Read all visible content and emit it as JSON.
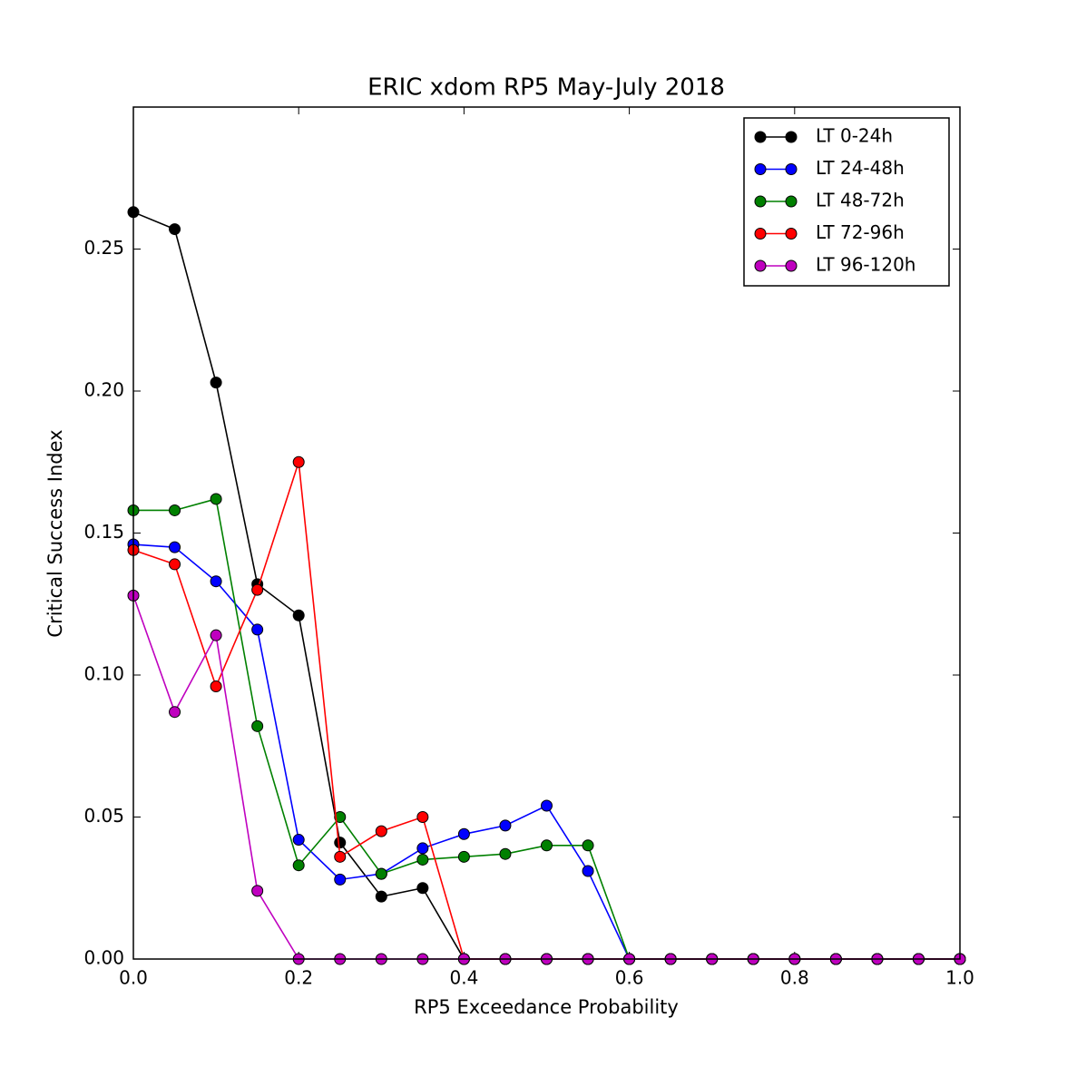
{
  "chart_data": {
    "type": "line",
    "title": "ERIC xdom RP5 May-July 2018",
    "x_label": "RP5 Exceedance Probability",
    "y_label": "Critical Success Index",
    "x": [
      0,
      0.05,
      0.1,
      0.15,
      0.2,
      0.25,
      0.3,
      0.35,
      0.4,
      0.45,
      0.5,
      0.55,
      0.6,
      0.65,
      0.7,
      0.75,
      0.8,
      0.85,
      0.9,
      0.95,
      1.0
    ],
    "series": [
      {
        "name": "LT 0-24h",
        "color": "#000000",
        "values": [
          0.263,
          0.257,
          0.203,
          0.132,
          0.121,
          0.041,
          0.022,
          0.025,
          0,
          0,
          0,
          0,
          0,
          0,
          0,
          0,
          0,
          0,
          0,
          0,
          0
        ]
      },
      {
        "name": "LT 24-48h",
        "color": "#0000ff",
        "values": [
          0.146,
          0.145,
          0.133,
          0.116,
          0.042,
          0.028,
          0.03,
          0.039,
          0.044,
          0.047,
          0.054,
          0.031,
          0,
          0,
          0,
          0,
          0,
          0,
          0,
          0,
          0
        ]
      },
      {
        "name": "LT 48-72h",
        "color": "#008000",
        "values": [
          0.158,
          0.158,
          0.162,
          0.082,
          0.033,
          0.05,
          0.03,
          0.035,
          0.036,
          0.037,
          0.04,
          0.04,
          0,
          0,
          0,
          0,
          0,
          0,
          0,
          0,
          0
        ]
      },
      {
        "name": "LT 72-96h",
        "color": "#ff0000",
        "values": [
          0.144,
          0.139,
          0.096,
          0.13,
          0.175,
          0.036,
          0.045,
          0.05,
          0,
          0,
          0,
          0,
          0,
          0,
          0,
          0,
          0,
          0,
          0,
          0,
          0
        ]
      },
      {
        "name": "LT 96-120h",
        "color": "#bf00bf",
        "values": [
          0.128,
          0.087,
          0.114,
          0.024,
          0,
          0,
          0,
          0,
          0,
          0,
          0,
          0,
          0,
          0,
          0,
          0,
          0,
          0,
          0,
          0,
          0
        ]
      }
    ],
    "xlim": [
      0,
      1.0
    ],
    "ylim": [
      0,
      0.3
    ],
    "xticks": [
      {
        "value": 0,
        "label": "0.0"
      },
      0.2,
      0.4,
      0.6,
      0.8,
      {
        "value": 1,
        "label": "1.0"
      }
    ],
    "yticks": [
      {
        "value": 0,
        "label": "0.00"
      },
      0.05,
      {
        "value": 0.1,
        "label": "0.10"
      },
      0.15,
      {
        "value": 0.2,
        "label": "0.20"
      },
      0.25
    ],
    "legend": "upper right",
    "grid": false
  }
}
